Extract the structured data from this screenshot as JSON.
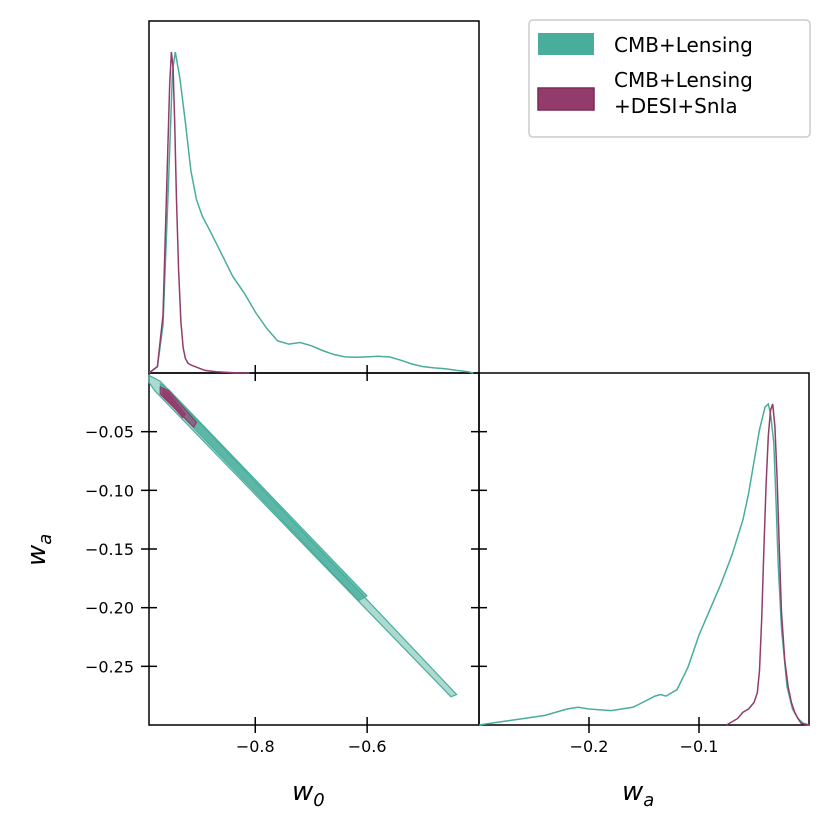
{
  "chart_data": {
    "type": "corner-plot",
    "legend": {
      "placement": "top-right",
      "entries": [
        {
          "label_line1": "CMB+Lensing",
          "label_line2": "",
          "color": "#48AE9B"
        },
        {
          "label_line1": "CMB+Lensing",
          "label_line2": "+DESI+SnIa",
          "color": "#933B6A"
        }
      ]
    },
    "parameters": [
      {
        "name": "w",
        "subscript": "0",
        "range": [
          -0.99,
          -0.4
        ]
      },
      {
        "name": "w",
        "subscript": "a",
        "range": [
          -0.3,
          0.0
        ]
      }
    ],
    "x_ticks_w0": [
      {
        "value": -0.8,
        "label": "−0.8"
      },
      {
        "value": -0.6,
        "label": "−0.6"
      }
    ],
    "y_ticks_wa": [
      {
        "value": -0.05,
        "label": "−0.05"
      },
      {
        "value": -0.1,
        "label": "−0.10"
      },
      {
        "value": -0.15,
        "label": "−0.15"
      },
      {
        "value": -0.2,
        "label": "−0.20"
      },
      {
        "value": -0.25,
        "label": "−0.25"
      }
    ],
    "x_ticks_wa": [
      {
        "value": -0.2,
        "label": "−0.2"
      },
      {
        "value": -0.1,
        "label": "−0.1"
      }
    ],
    "marginal_w0": {
      "series": [
        {
          "name": "CMB+Lensing",
          "color": "#48AE9B",
          "x": [
            -0.99,
            -0.975,
            -0.965,
            -0.955,
            -0.948,
            -0.943,
            -0.935,
            -0.925,
            -0.915,
            -0.905,
            -0.895,
            -0.88,
            -0.86,
            -0.84,
            -0.82,
            -0.8,
            -0.78,
            -0.76,
            -0.74,
            -0.72,
            -0.7,
            -0.68,
            -0.66,
            -0.64,
            -0.62,
            -0.6,
            -0.58,
            -0.56,
            -0.54,
            -0.52,
            -0.5,
            -0.48,
            -0.46,
            -0.44,
            -0.42,
            -0.41
          ],
          "y": [
            0.0,
            0.02,
            0.15,
            0.6,
            0.94,
            1.0,
            0.92,
            0.78,
            0.63,
            0.54,
            0.49,
            0.44,
            0.37,
            0.3,
            0.25,
            0.19,
            0.14,
            0.1,
            0.09,
            0.095,
            0.085,
            0.07,
            0.058,
            0.05,
            0.049,
            0.05,
            0.052,
            0.05,
            0.04,
            0.028,
            0.02,
            0.016,
            0.013,
            0.008,
            0.004,
            0.0
          ]
        },
        {
          "name": "CMB+Lensing +DESI+SnIa",
          "color": "#933B6A",
          "x": [
            -0.99,
            -0.975,
            -0.965,
            -0.958,
            -0.953,
            -0.95,
            -0.947,
            -0.944,
            -0.941,
            -0.937,
            -0.933,
            -0.929,
            -0.925,
            -0.92,
            -0.915,
            -0.905,
            -0.89,
            -0.87,
            -0.85,
            -0.83,
            -0.81
          ],
          "y": [
            0.0,
            0.02,
            0.18,
            0.6,
            0.9,
            1.0,
            0.95,
            0.78,
            0.55,
            0.32,
            0.16,
            0.08,
            0.045,
            0.03,
            0.025,
            0.018,
            0.008,
            0.004,
            0.002,
            0.0,
            0.0
          ]
        }
      ]
    },
    "joint_w0_wa": {
      "description": "degenerate elongated contours",
      "series": [
        {
          "name": "CMB+Lensing",
          "color": "#48AE9B",
          "outer": [
            [
              -0.99,
              -0.002
            ],
            [
              -0.97,
              -0.007
            ],
            [
              -0.44,
              -0.274
            ],
            [
              -0.45,
              -0.276
            ],
            [
              -0.98,
              -0.015
            ],
            [
              -0.99,
              -0.008
            ]
          ],
          "inner": [
            [
              -0.97,
              -0.009
            ],
            [
              -0.955,
              -0.014
            ],
            [
              -0.6,
              -0.19
            ],
            [
              -0.615,
              -0.194
            ],
            [
              -0.968,
              -0.018
            ]
          ]
        },
        {
          "name": "CMB+Lensing +DESI+SnIa",
          "color": "#933B6A",
          "outer": [
            [
              -0.97,
              -0.012
            ],
            [
              -0.955,
              -0.015
            ],
            [
              -0.905,
              -0.042
            ],
            [
              -0.91,
              -0.046
            ],
            [
              -0.97,
              -0.018
            ]
          ],
          "inner": [
            [
              -0.965,
              -0.014
            ],
            [
              -0.955,
              -0.017
            ],
            [
              -0.925,
              -0.035
            ],
            [
              -0.93,
              -0.038
            ],
            [
              -0.966,
              -0.018
            ]
          ]
        }
      ]
    },
    "marginal_wa": {
      "series": [
        {
          "name": "CMB+Lensing",
          "color": "#48AE9B",
          "x": [
            -0.3,
            -0.28,
            -0.26,
            -0.24,
            -0.22,
            -0.21,
            -0.2,
            -0.18,
            -0.16,
            -0.14,
            -0.135,
            -0.13,
            -0.12,
            -0.11,
            -0.1,
            -0.09,
            -0.08,
            -0.07,
            -0.06,
            -0.055,
            -0.05,
            -0.045,
            -0.04,
            -0.037,
            -0.035,
            -0.032,
            -0.03,
            -0.028,
            -0.025,
            -0.02,
            -0.015,
            -0.01,
            -0.005,
            0.0
          ],
          "y": [
            0.0,
            0.01,
            0.02,
            0.03,
            0.05,
            0.055,
            0.05,
            0.045,
            0.055,
            0.09,
            0.095,
            0.09,
            0.11,
            0.18,
            0.28,
            0.36,
            0.44,
            0.53,
            0.64,
            0.72,
            0.82,
            0.92,
            0.99,
            1.0,
            0.97,
            0.88,
            0.7,
            0.5,
            0.3,
            0.12,
            0.05,
            0.02,
            0.005,
            0.0
          ]
        },
        {
          "name": "CMB+Lensing +DESI+SnIa",
          "color": "#933B6A",
          "x": [
            -0.075,
            -0.065,
            -0.06,
            -0.055,
            -0.05,
            -0.047,
            -0.045,
            -0.043,
            -0.041,
            -0.039,
            -0.037,
            -0.035,
            -0.033,
            -0.031,
            -0.029,
            -0.027,
            -0.025,
            -0.022,
            -0.019,
            -0.016,
            -0.013,
            -0.01,
            -0.007,
            0.0
          ],
          "y": [
            0.0,
            0.02,
            0.04,
            0.05,
            0.07,
            0.1,
            0.17,
            0.33,
            0.55,
            0.75,
            0.9,
            0.98,
            1.0,
            0.93,
            0.77,
            0.55,
            0.35,
            0.2,
            0.12,
            0.07,
            0.04,
            0.02,
            0.005,
            0.0
          ]
        }
      ]
    },
    "xlabel_left": "w0",
    "xlabel_right": "wa",
    "ylabel_left": "wa"
  }
}
